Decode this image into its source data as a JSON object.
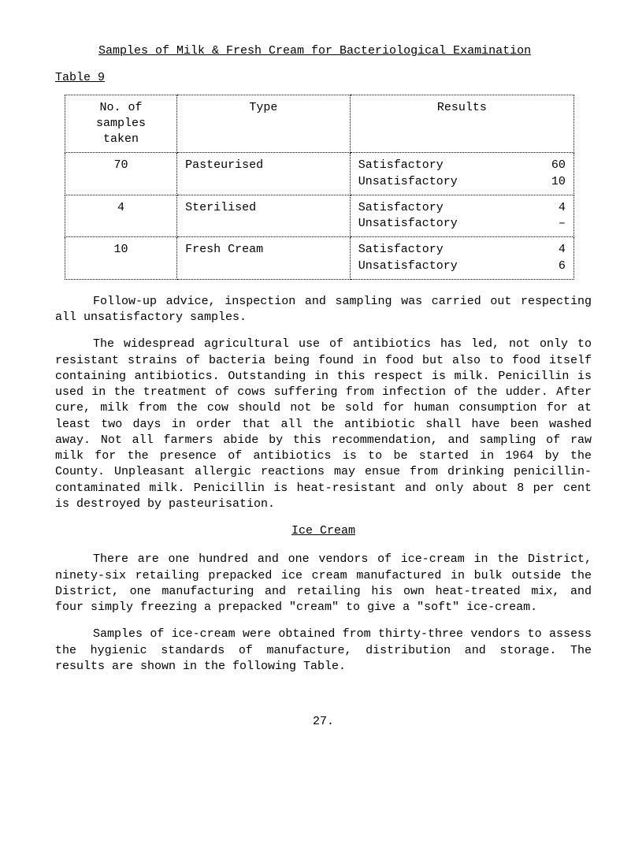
{
  "title": "Samples of Milk & Fresh Cream for Bacteriological Examination",
  "table_label": "Table 9",
  "table": {
    "headers": {
      "samples": "No. of\nsamples\ntaken",
      "type": "Type",
      "results": "Results"
    },
    "rows": [
      {
        "samples": "70",
        "type": "Pasteurised",
        "r1_label": "Satisfactory",
        "r1_num": "60",
        "r2_label": "Unsatisfactory",
        "r2_num": "10"
      },
      {
        "samples": "4",
        "type": "Sterilised",
        "r1_label": "Satisfactory",
        "r1_num": "4",
        "r2_label": "Unsatisfactory",
        "r2_num": "–"
      },
      {
        "samples": "10",
        "type": "Fresh Cream",
        "r1_label": "Satisfactory",
        "r1_num": "4",
        "r2_label": "Unsatisfactory",
        "r2_num": "6"
      }
    ]
  },
  "para1": "Follow-up advice, inspection and sampling was carried out respecting all unsatisfactory samples.",
  "para2": "The widespread agricultural use of antibiotics has led, not only to resistant strains of bacteria being found in food but also to food itself containing antibiotics.  Outstanding in this respect is milk.  Penicillin is used in the treatment of cows suffering from infection of the udder.  After cure, milk from the cow should not be sold for human consumption for at least  two  days in order that all the antibiotic shall have been washed away.  Not all farmers abide by this recommendation, and sampling of raw milk for the presence of antibiotics is to be started in 1964 by the County.  Unpleasant allergic reactions may ensue from drinking penicillin-contaminated milk.  Penicillin is heat-resistant and only about 8 per cent is destroyed by pasteurisation.",
  "ice_cream_head": "Ice Cream",
  "para3": "There are one hundred and one vendors of ice-cream in the District, ninety-six retailing prepacked ice cream manufactured in bulk outside the District, one manufacturing and retailing his own heat-treated mix, and four simply freezing a prepacked \"cream\" to give a \"soft\" ice-cream.",
  "para4": "Samples of ice-cream were obtained from thirty-three vendors to assess the hygienic standards of manufacture, distribution and storage.  The results are shown in the following Table.",
  "page_num": "27."
}
